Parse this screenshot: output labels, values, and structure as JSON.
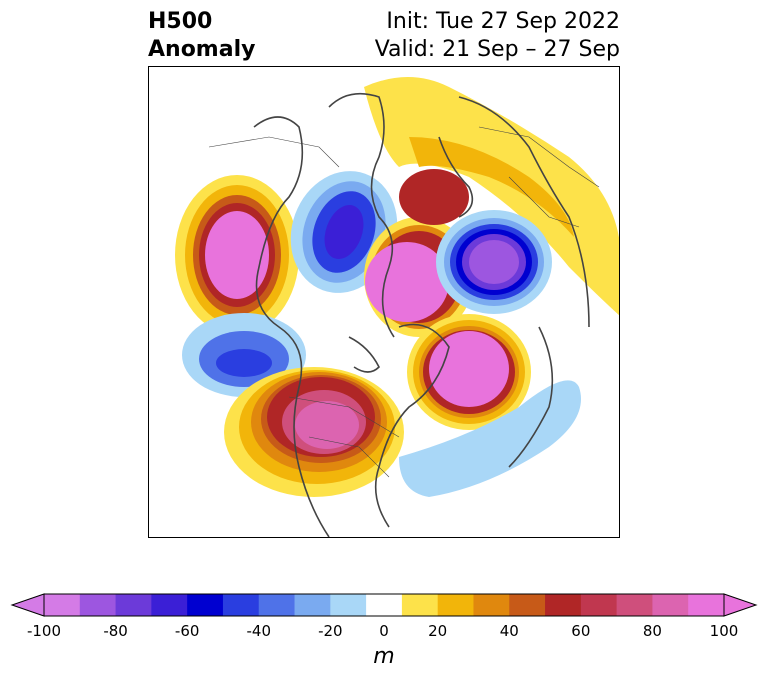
{
  "title": {
    "left_line1": "H500",
    "left_line2": "Anomaly",
    "right_line1": "Init: Tue 27 Sep 2022",
    "right_line2": "Valid: 21 Sep – 27 Sep"
  },
  "colorbar": {
    "unit_label": "m",
    "ticks": [
      "-100",
      "-80",
      "-60",
      "-40",
      "-20",
      "0",
      "20",
      "40",
      "60",
      "80",
      "100"
    ],
    "colors": [
      "#d47be6",
      "#9d56e0",
      "#6c3ad9",
      "#3b1fd6",
      "#0000d0",
      "#2a3ee0",
      "#4f72e8",
      "#7aaaf0",
      "#a9d7f7",
      "#ffffff",
      "#fde24a",
      "#f2b50a",
      "#e0880e",
      "#c75a18",
      "#b02626",
      "#c0374f",
      "#cf4f7c",
      "#dc64b0",
      "#e873dc"
    ],
    "extend_low_color": "#d47be6",
    "extend_high_color": "#e873dc"
  },
  "map": {
    "projection": "north-polar-stereographic",
    "colors": {
      "coast": "#444444",
      "ridge_outer": "#fde24a",
      "ridge_mid": "#f2b50a",
      "ridge_inner": "#b02626",
      "ridge_core": "#e873dc",
      "trough_outer": "#a9d7f7",
      "trough_mid": "#4f72e8",
      "trough_inner": "#2a3ee0",
      "trough_core": "#3b1fd6"
    }
  }
}
